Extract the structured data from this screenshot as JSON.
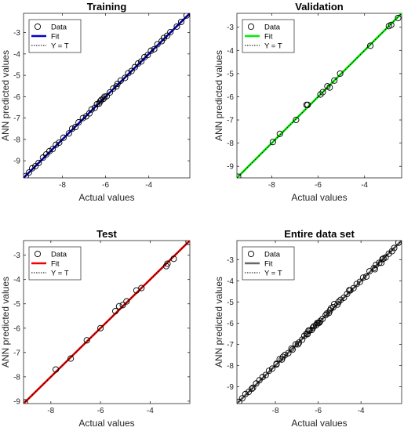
{
  "chart_data": [
    {
      "type": "scatter",
      "title": "Training",
      "xlabel": "Actual values",
      "ylabel": "ANN predicted values",
      "xlim": [
        -9.8,
        -2.1
      ],
      "ylim": [
        -9.8,
        -2.1
      ],
      "xticks": [
        -8,
        -6,
        -4
      ],
      "yticks": [
        -9,
        -8,
        -7,
        -6,
        -5,
        -4,
        -3
      ],
      "fit_color": "#0000cc",
      "legend": [
        "Data",
        "Fit",
        "Y = T"
      ],
      "legend_position": "top-left",
      "series": [
        {
          "name": "Data",
          "points": [
            [
              -9.7,
              -9.72
            ],
            [
              -9.55,
              -9.55
            ],
            [
              -9.4,
              -9.35
            ],
            [
              -9.25,
              -9.25
            ],
            [
              -9.1,
              -9.1
            ],
            [
              -8.9,
              -8.85
            ],
            [
              -8.75,
              -8.7
            ],
            [
              -8.6,
              -8.55
            ],
            [
              -8.45,
              -8.45
            ],
            [
              -8.3,
              -8.25
            ],
            [
              -8.15,
              -8.15
            ],
            [
              -7.95,
              -7.92
            ],
            [
              -7.7,
              -7.72
            ],
            [
              -7.55,
              -7.5
            ],
            [
              -7.4,
              -7.42
            ],
            [
              -7.25,
              -7.2
            ],
            [
              -7.05,
              -7.0
            ],
            [
              -6.9,
              -6.92
            ],
            [
              -6.75,
              -6.78
            ],
            [
              -6.65,
              -6.6
            ],
            [
              -6.5,
              -6.52
            ],
            [
              -6.4,
              -6.35
            ],
            [
              -6.3,
              -6.32
            ],
            [
              -6.25,
              -6.22
            ],
            [
              -6.2,
              -6.15
            ],
            [
              -6.1,
              -6.1
            ],
            [
              -6.05,
              -6.0
            ],
            [
              -5.95,
              -5.98
            ],
            [
              -5.8,
              -5.8
            ],
            [
              -5.65,
              -5.62
            ],
            [
              -5.5,
              -5.52
            ],
            [
              -5.45,
              -5.4
            ],
            [
              -5.3,
              -5.25
            ],
            [
              -5.1,
              -5.12
            ],
            [
              -4.95,
              -4.9
            ],
            [
              -4.8,
              -4.8
            ],
            [
              -4.65,
              -4.62
            ],
            [
              -4.5,
              -4.45
            ],
            [
              -4.35,
              -4.35
            ],
            [
              -4.2,
              -4.15
            ],
            [
              -4.05,
              -4.05
            ],
            [
              -3.9,
              -3.85
            ],
            [
              -3.75,
              -3.78
            ],
            [
              -3.6,
              -3.55
            ],
            [
              -3.4,
              -3.4
            ],
            [
              -3.3,
              -3.25
            ],
            [
              -3.15,
              -3.15
            ],
            [
              -3.0,
              -2.98
            ],
            [
              -2.7,
              -2.72
            ],
            [
              -2.5,
              -2.5
            ],
            [
              -2.25,
              -2.2
            ]
          ]
        },
        {
          "name": "Fit",
          "line": [
            [
              -9.8,
              -9.8
            ],
            [
              -2.1,
              -2.1
            ]
          ]
        }
      ]
    },
    {
      "type": "scatter",
      "title": "Validation",
      "xlabel": "Actual values",
      "ylabel": "ANN predicted values",
      "xlim": [
        -9.5,
        -2.4
      ],
      "ylim": [
        -9.5,
        -2.4
      ],
      "xticks": [
        -8,
        -6,
        -4
      ],
      "yticks": [
        -9,
        -8,
        -7,
        -6,
        -5,
        -4,
        -3
      ],
      "fit_color": "#00ee00",
      "legend": [
        "Data",
        "Fit",
        "Y = T"
      ],
      "legend_position": "top-left",
      "series": [
        {
          "name": "Data",
          "points": [
            [
              -9.45,
              -9.45
            ],
            [
              -7.95,
              -7.95
            ],
            [
              -7.65,
              -7.6
            ],
            [
              -6.95,
              -7.0
            ],
            [
              -6.5,
              -6.35
            ],
            [
              -6.45,
              -6.35
            ],
            [
              -5.9,
              -5.9
            ],
            [
              -5.8,
              -5.8
            ],
            [
              -5.6,
              -5.55
            ],
            [
              -5.5,
              -5.6
            ],
            [
              -5.3,
              -5.3
            ],
            [
              -5.05,
              -5.0
            ],
            [
              -3.75,
              -3.8
            ],
            [
              -2.95,
              -2.95
            ],
            [
              -2.85,
              -2.9
            ],
            [
              -2.55,
              -2.6
            ]
          ]
        },
        {
          "name": "Fit",
          "line": [
            [
              -9.5,
              -9.5
            ],
            [
              -2.4,
              -2.4
            ]
          ]
        }
      ]
    },
    {
      "type": "scatter",
      "title": "Test",
      "xlabel": "Actual values",
      "ylabel": "ANN predicted values",
      "xlim": [
        -9.1,
        -2.4
      ],
      "ylim": [
        -9.1,
        -2.4
      ],
      "xticks": [
        -8,
        -6,
        -4
      ],
      "yticks": [
        -9,
        -8,
        -7,
        -6,
        -5,
        -4,
        -3
      ],
      "fit_color": "#ee0000",
      "legend": [
        "Data",
        "Fit",
        "Y = T"
      ],
      "legend_position": "top-left",
      "series": [
        {
          "name": "Data",
          "points": [
            [
              -9.05,
              -9.05
            ],
            [
              -7.8,
              -7.7
            ],
            [
              -7.2,
              -7.25
            ],
            [
              -6.55,
              -6.5
            ],
            [
              -6.0,
              -6.0
            ],
            [
              -5.4,
              -5.3
            ],
            [
              -5.25,
              -5.1
            ],
            [
              -5.1,
              -5.05
            ],
            [
              -4.95,
              -4.9
            ],
            [
              -4.55,
              -4.45
            ],
            [
              -4.35,
              -4.35
            ],
            [
              -3.35,
              -3.45
            ],
            [
              -3.3,
              -3.35
            ],
            [
              -3.05,
              -3.15
            ],
            [
              -2.45,
              -2.45
            ]
          ]
        },
        {
          "name": "Fit",
          "line": [
            [
              -9.1,
              -9.1
            ],
            [
              -2.4,
              -2.4
            ]
          ]
        }
      ]
    },
    {
      "type": "scatter",
      "title": "Entire data set",
      "xlabel": "Actual values",
      "ylabel": "ANN predicted values",
      "xlim": [
        -9.8,
        -2.1
      ],
      "ylim": [
        -9.8,
        -2.1
      ],
      "xticks": [
        -8,
        -6,
        -4
      ],
      "yticks": [
        -9,
        -8,
        -7,
        -6,
        -5,
        -4,
        -3
      ],
      "fit_color": "#666666",
      "legend": [
        "Data",
        "Fit",
        "Y = T"
      ],
      "legend_position": "top-left",
      "series": [
        {
          "name": "Data",
          "points": [
            [
              -9.7,
              -9.72
            ],
            [
              -9.55,
              -9.55
            ],
            [
              -9.4,
              -9.35
            ],
            [
              -9.25,
              -9.25
            ],
            [
              -9.1,
              -9.1
            ],
            [
              -9.05,
              -9.05
            ],
            [
              -8.9,
              -8.85
            ],
            [
              -8.75,
              -8.7
            ],
            [
              -8.6,
              -8.55
            ],
            [
              -8.45,
              -8.45
            ],
            [
              -8.3,
              -8.25
            ],
            [
              -8.15,
              -8.15
            ],
            [
              -7.95,
              -7.95
            ],
            [
              -7.95,
              -7.92
            ],
            [
              -7.8,
              -7.7
            ],
            [
              -7.7,
              -7.72
            ],
            [
              -7.65,
              -7.6
            ],
            [
              -7.55,
              -7.5
            ],
            [
              -7.4,
              -7.42
            ],
            [
              -7.25,
              -7.2
            ],
            [
              -7.2,
              -7.25
            ],
            [
              -7.05,
              -7.0
            ],
            [
              -6.95,
              -7.0
            ],
            [
              -6.9,
              -6.92
            ],
            [
              -6.75,
              -6.78
            ],
            [
              -6.65,
              -6.6
            ],
            [
              -6.55,
              -6.5
            ],
            [
              -6.5,
              -6.52
            ],
            [
              -6.45,
              -6.35
            ],
            [
              -6.4,
              -6.35
            ],
            [
              -6.3,
              -6.32
            ],
            [
              -6.25,
              -6.22
            ],
            [
              -6.2,
              -6.15
            ],
            [
              -6.1,
              -6.1
            ],
            [
              -6.05,
              -6.0
            ],
            [
              -6.0,
              -6.0
            ],
            [
              -5.95,
              -5.98
            ],
            [
              -5.9,
              -5.9
            ],
            [
              -5.8,
              -5.8
            ],
            [
              -5.65,
              -5.62
            ],
            [
              -5.6,
              -5.55
            ],
            [
              -5.5,
              -5.52
            ],
            [
              -5.45,
              -5.4
            ],
            [
              -5.4,
              -5.3
            ],
            [
              -5.3,
              -5.25
            ],
            [
              -5.25,
              -5.1
            ],
            [
              -5.1,
              -5.12
            ],
            [
              -5.05,
              -5.0
            ],
            [
              -4.95,
              -4.9
            ],
            [
              -4.8,
              -4.8
            ],
            [
              -4.65,
              -4.62
            ],
            [
              -4.55,
              -4.45
            ],
            [
              -4.5,
              -4.45
            ],
            [
              -4.35,
              -4.35
            ],
            [
              -4.2,
              -4.15
            ],
            [
              -4.05,
              -4.05
            ],
            [
              -3.9,
              -3.85
            ],
            [
              -3.75,
              -3.8
            ],
            [
              -3.6,
              -3.55
            ],
            [
              -3.4,
              -3.4
            ],
            [
              -3.35,
              -3.45
            ],
            [
              -3.3,
              -3.25
            ],
            [
              -3.15,
              -3.15
            ],
            [
              -3.05,
              -3.15
            ],
            [
              -3.0,
              -2.98
            ],
            [
              -2.95,
              -2.95
            ],
            [
              -2.85,
              -2.9
            ],
            [
              -2.7,
              -2.72
            ],
            [
              -2.55,
              -2.6
            ],
            [
              -2.45,
              -2.45
            ],
            [
              -2.25,
              -2.2
            ]
          ]
        },
        {
          "name": "Fit",
          "line": [
            [
              -9.8,
              -9.8
            ],
            [
              -2.1,
              -2.1
            ]
          ]
        }
      ]
    }
  ]
}
